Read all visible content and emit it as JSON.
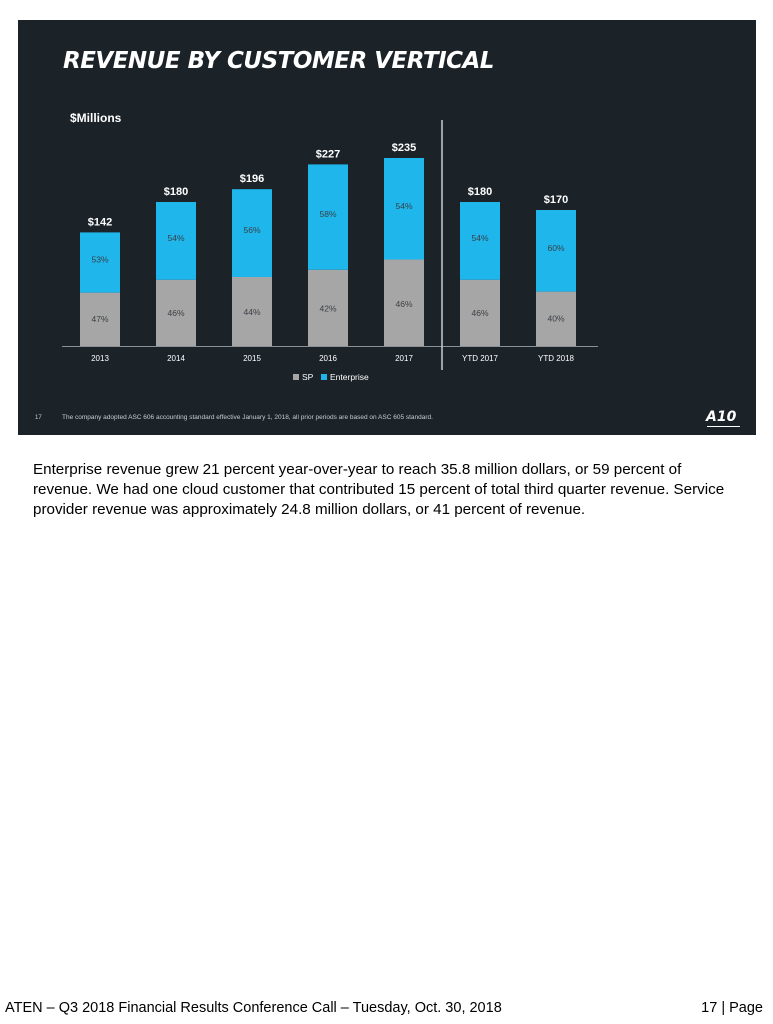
{
  "slide": {
    "title": "REVENUE BY CUSTOMER VERTICAL",
    "units_label": "$Millions",
    "slide_number": "17",
    "footnote": "The company adopted ASC 606 accounting standard effective January 1, 2018, all prior periods are based on ASC 605 standard.",
    "logo_text": "A10",
    "colors": {
      "background": "#1b2228",
      "sp": "#a6a6a6",
      "enterprise": "#1fb6ec"
    }
  },
  "chart_data": {
    "type": "bar",
    "stacked": true,
    "title": "REVENUE BY CUSTOMER VERTICAL",
    "ylabel": "$Millions",
    "xlabel": "",
    "ylim": [
      0,
      250
    ],
    "categories": [
      "2013",
      "2014",
      "2015",
      "2016",
      "2017",
      "YTD 2017",
      "YTD 2018"
    ],
    "totals": [
      142,
      180,
      196,
      227,
      235,
      180,
      170
    ],
    "total_labels": [
      "$142",
      "$180",
      "$196",
      "$227",
      "$235",
      "$180",
      "$170"
    ],
    "series": [
      {
        "name": "SP",
        "percent": [
          47,
          46,
          44,
          42,
          46,
          46,
          40
        ],
        "labels": [
          "47%",
          "46%",
          "44%",
          "42%",
          "46%",
          "46%",
          "40%"
        ]
      },
      {
        "name": "Enterprise",
        "percent": [
          53,
          54,
          56,
          58,
          54,
          54,
          60
        ],
        "labels": [
          "53%",
          "54%",
          "56%",
          "58%",
          "54%",
          "54%",
          "60%"
        ]
      }
    ],
    "legend": [
      "SP",
      "Enterprise"
    ],
    "legend_position": "bottom",
    "divider_after_index": 4
  },
  "body_text": "Enterprise revenue grew 21 percent year-over-year to reach 35.8 million dollars, or 59 percent of revenue.  We had one cloud customer that contributed 15 percent of total third quarter revenue. Service provider revenue was approximately 24.8 million dollars, or 41 percent of revenue.",
  "footer": {
    "left": "ATEN – Q3 2018 Financial Results Conference Call – Tuesday, Oct. 30, 2018",
    "right": "17 | Page"
  }
}
